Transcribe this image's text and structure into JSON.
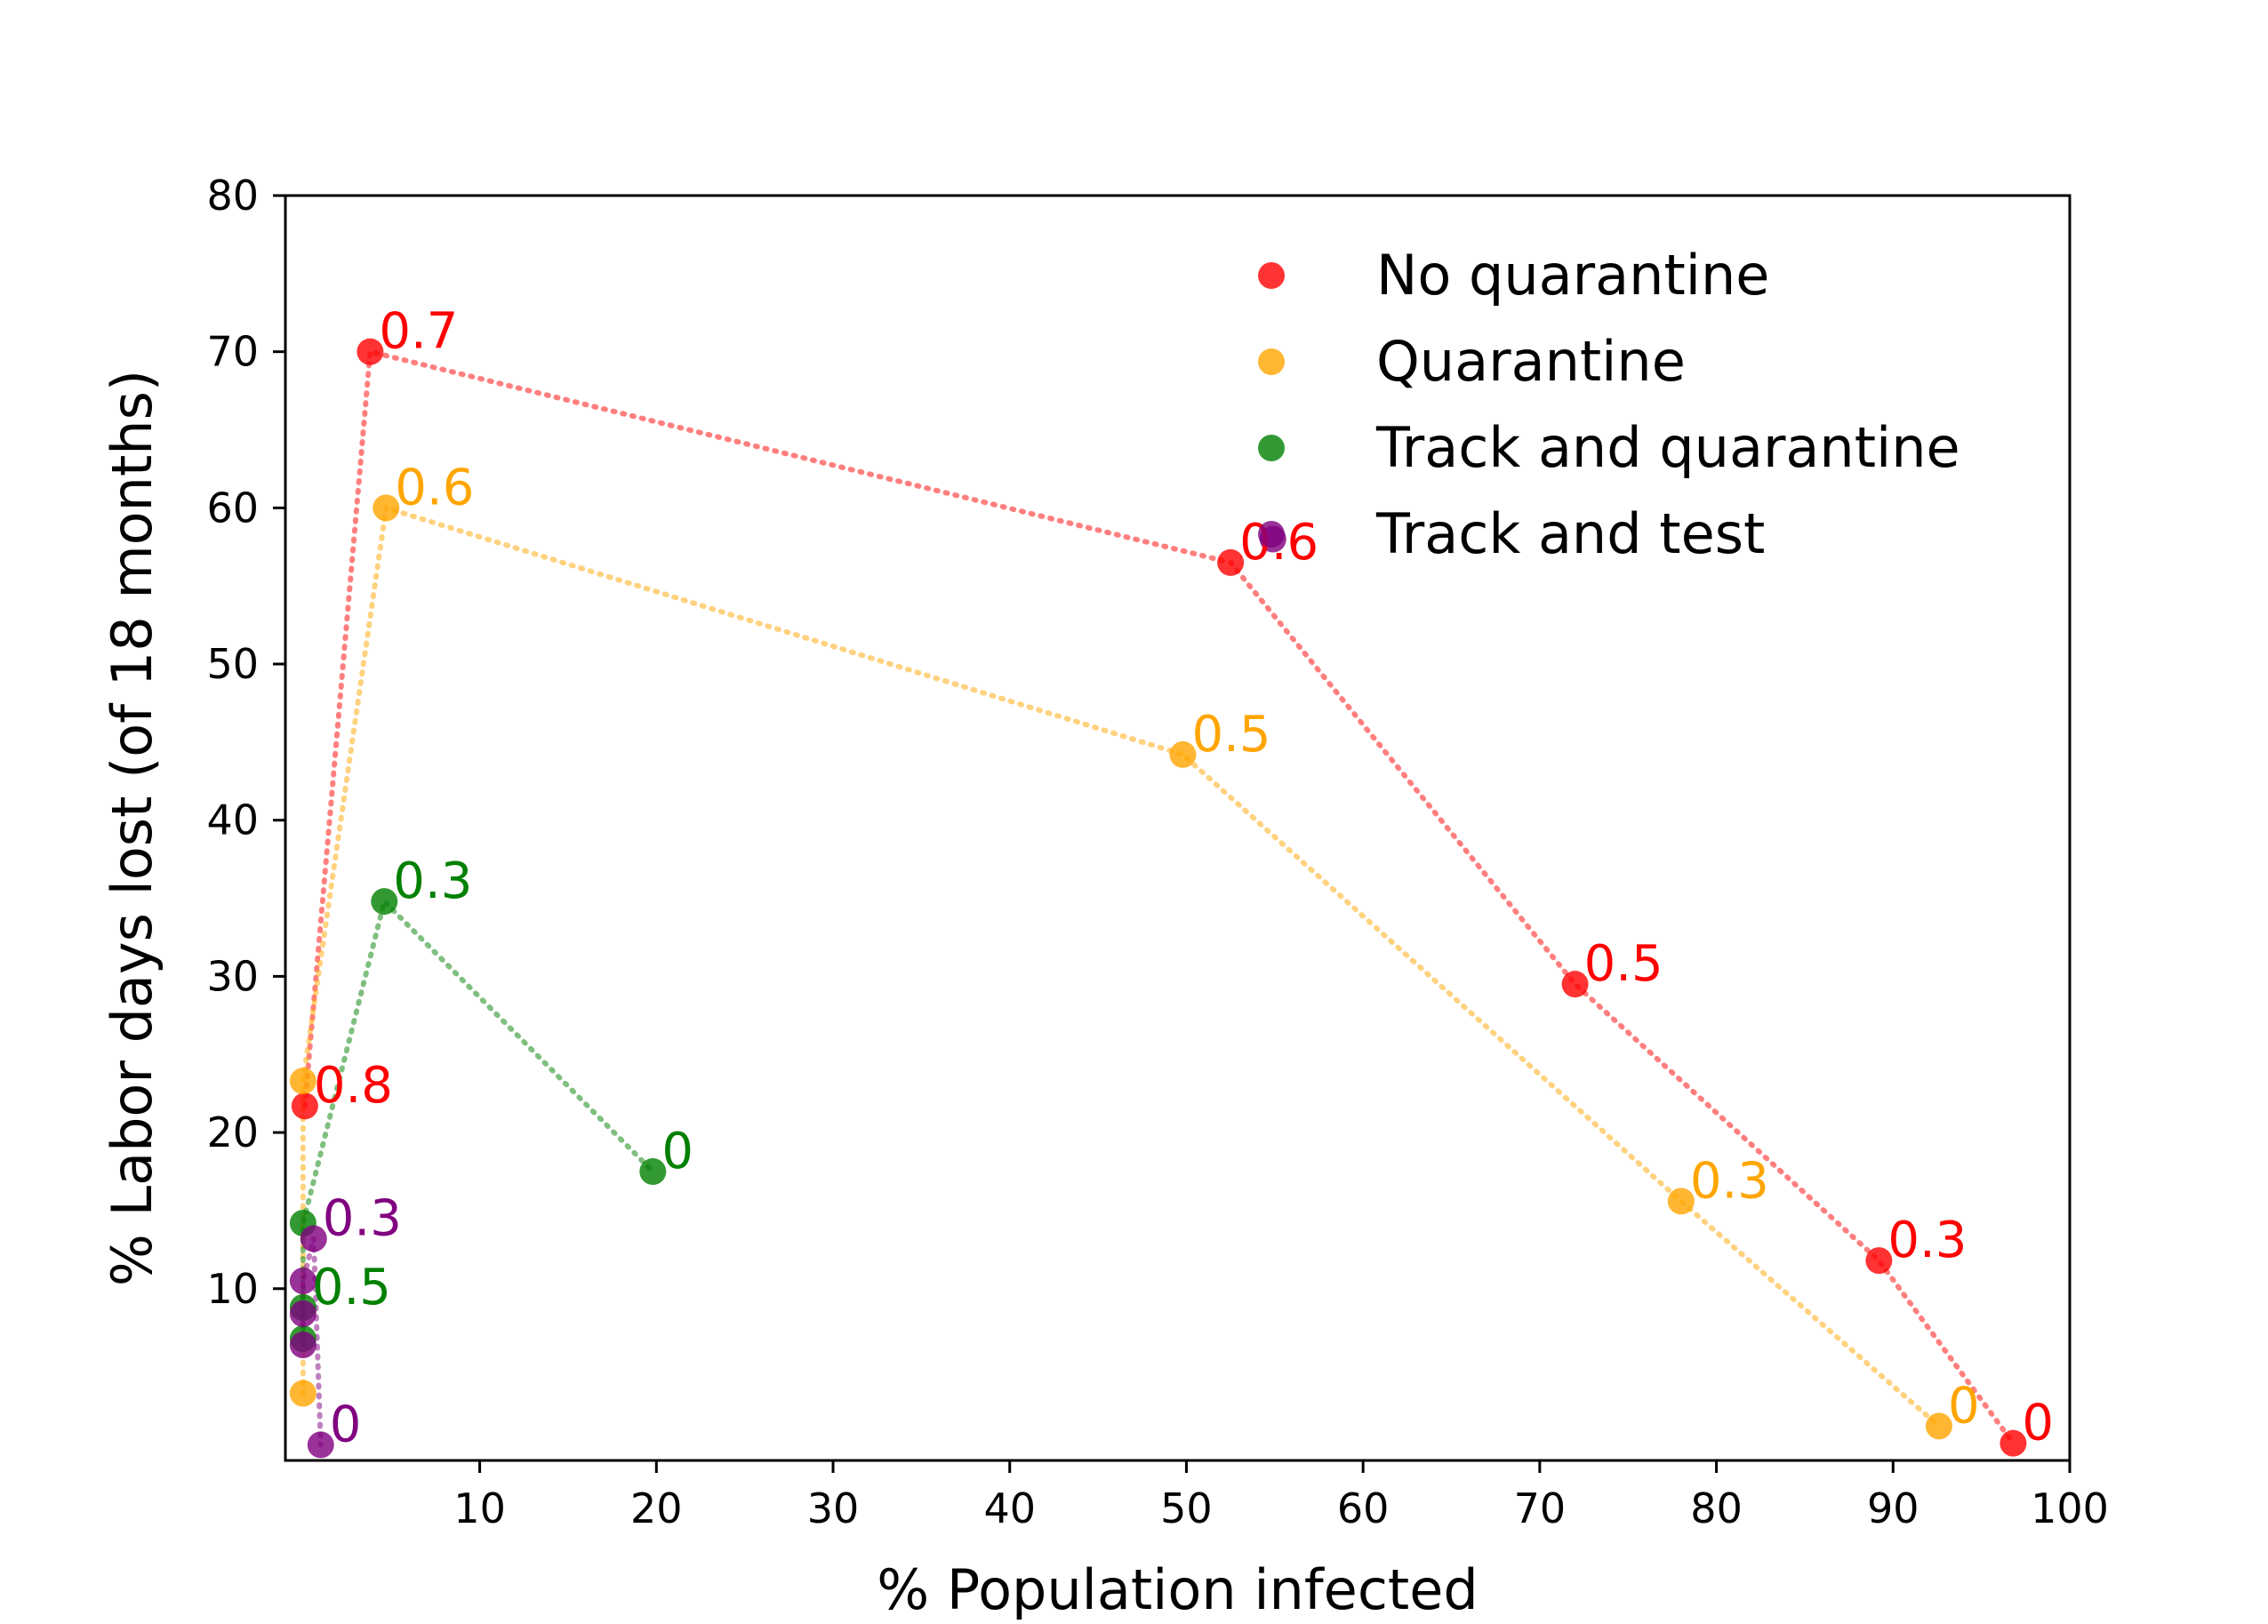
{
  "chart_data": {
    "type": "scatter",
    "title": "",
    "xlabel": "% Population infected",
    "ylabel": "% Labor days lost (of 18 months)",
    "xlim": [
      -1,
      100
    ],
    "ylim": [
      -1,
      80
    ],
    "xticks": [
      10,
      20,
      30,
      40,
      50,
      60,
      70,
      80,
      90,
      100
    ],
    "yticks": [
      10,
      20,
      30,
      40,
      50,
      60,
      70,
      80
    ],
    "grid": false,
    "legend_position": "top-right",
    "series": [
      {
        "name": "No quarantine",
        "color": "#ff0000",
        "connector": "dotted",
        "points": [
          {
            "x": 0.1,
            "y": 21.7,
            "label": "0.8"
          },
          {
            "x": 3.8,
            "y": 70.0,
            "label": "0.7"
          },
          {
            "x": 52.5,
            "y": 56.5,
            "label": "0.6"
          },
          {
            "x": 72.0,
            "y": 29.5,
            "label": "0.5"
          },
          {
            "x": 89.2,
            "y": 11.8,
            "label": "0.3"
          },
          {
            "x": 96.8,
            "y": 0.1,
            "label": "0"
          }
        ]
      },
      {
        "name": "Quarantine",
        "color": "#ffa500",
        "connector": "dotted",
        "points": [
          {
            "x": 0.0,
            "y": 3.3,
            "label": ""
          },
          {
            "x": 0.0,
            "y": 23.3,
            "label": ""
          },
          {
            "x": 4.7,
            "y": 60.0,
            "label": "0.6"
          },
          {
            "x": 49.8,
            "y": 44.2,
            "label": "0.5"
          },
          {
            "x": 78.0,
            "y": 15.6,
            "label": "0.3"
          },
          {
            "x": 92.6,
            "y": 1.2,
            "label": "0"
          }
        ]
      },
      {
        "name": "Track and quarantine",
        "color": "#008000",
        "connector": "dotted",
        "points": [
          {
            "x": 0.0,
            "y": 6.8,
            "label": ""
          },
          {
            "x": 0.0,
            "y": 8.8,
            "label": "0.5"
          },
          {
            "x": 0.0,
            "y": 14.2,
            "label": ""
          },
          {
            "x": 4.6,
            "y": 34.8,
            "label": "0.3"
          },
          {
            "x": 19.8,
            "y": 17.5,
            "label": "0"
          }
        ]
      },
      {
        "name": "Track and test",
        "color": "#800080",
        "connector": "dotted",
        "points": [
          {
            "x": 0.0,
            "y": 6.4,
            "label": ""
          },
          {
            "x": 0.0,
            "y": 8.4,
            "label": ""
          },
          {
            "x": 0.0,
            "y": 10.5,
            "label": ""
          },
          {
            "x": 0.6,
            "y": 13.2,
            "label": "0.3"
          },
          {
            "x": 1.0,
            "y": 0.0,
            "label": "0"
          }
        ]
      }
    ],
    "legend_marker_color": "#800080",
    "stray_point": {
      "x": 54.9,
      "y": 58.0,
      "color": "#800080"
    }
  }
}
